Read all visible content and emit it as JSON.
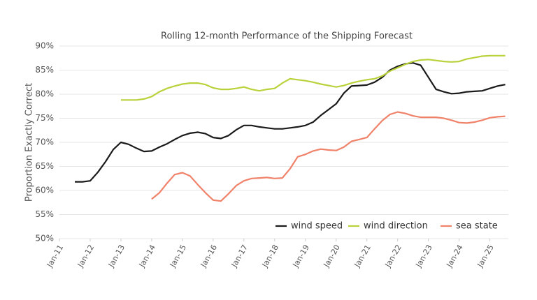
{
  "chart_data": {
    "type": "line",
    "title": "Rolling 12-month Performance of the Shipping Forecast",
    "y_label": "Proportion Exactly Correct",
    "x": [
      2011.5,
      2011.75,
      2012,
      2012.25,
      2012.5,
      2012.75,
      2013,
      2013.25,
      2013.5,
      2013.75,
      2014,
      2014.25,
      2014.5,
      2014.75,
      2015,
      2015.25,
      2015.5,
      2015.75,
      2016,
      2016.25,
      2016.5,
      2016.75,
      2017,
      2017.25,
      2017.5,
      2017.75,
      2018,
      2018.25,
      2018.5,
      2018.75,
      2019,
      2019.25,
      2019.5,
      2019.75,
      2020,
      2020.25,
      2020.5,
      2020.75,
      2021,
      2021.25,
      2021.5,
      2021.75,
      2022,
      2022.25,
      2022.5,
      2022.75,
      2023,
      2023.25,
      2023.5,
      2023.75,
      2024,
      2024.25,
      2024.5,
      2024.75,
      2025,
      2025.25,
      2025.5
    ],
    "series": [
      {
        "name": "wind speed",
        "color": "#1a1a1a",
        "values": [
          61.8,
          61.8,
          62.0,
          63.8,
          66.0,
          68.5,
          70.0,
          69.6,
          68.8,
          68.1,
          68.2,
          69.0,
          69.7,
          70.6,
          71.4,
          71.9,
          72.1,
          71.8,
          71.0,
          70.8,
          71.4,
          72.6,
          73.5,
          73.5,
          73.2,
          73.0,
          72.8,
          72.8,
          73.0,
          73.2,
          73.5,
          74.2,
          75.6,
          76.8,
          78.0,
          80.2,
          81.7,
          81.8,
          81.9,
          82.5,
          83.5,
          85.0,
          85.8,
          86.3,
          86.5,
          86.0,
          83.5,
          81.0,
          80.5,
          80.1,
          80.2,
          80.5,
          80.6,
          80.7,
          81.2,
          81.7,
          82.0
        ]
      },
      {
        "name": "wind direction",
        "color": "#b9d23c",
        "values": [
          null,
          null,
          null,
          null,
          null,
          null,
          78.8,
          78.8,
          78.8,
          79.0,
          79.5,
          80.5,
          81.2,
          81.7,
          82.1,
          82.3,
          82.3,
          82.0,
          81.3,
          81.0,
          81.0,
          81.2,
          81.5,
          81.0,
          80.7,
          81.0,
          81.2,
          82.3,
          83.2,
          83.0,
          82.8,
          82.5,
          82.1,
          81.8,
          81.5,
          81.8,
          82.3,
          82.7,
          83.0,
          83.2,
          83.8,
          84.8,
          85.5,
          86.2,
          86.8,
          87.1,
          87.2,
          87.0,
          86.8,
          86.7,
          86.8,
          87.3,
          87.6,
          87.9,
          88.0,
          88.0,
          88.0
        ]
      },
      {
        "name": "sea state",
        "color": "#f0826a",
        "values": [
          null,
          null,
          null,
          null,
          null,
          null,
          null,
          null,
          null,
          null,
          58.2,
          59.5,
          61.5,
          63.3,
          63.7,
          63.0,
          61.2,
          59.5,
          58.0,
          57.8,
          59.3,
          61.0,
          62.0,
          62.5,
          62.6,
          62.7,
          62.5,
          62.6,
          64.5,
          67.0,
          67.5,
          68.2,
          68.6,
          68.4,
          68.3,
          69.0,
          70.2,
          70.6,
          71.0,
          72.8,
          74.5,
          75.8,
          76.3,
          76.0,
          75.5,
          75.2,
          75.2,
          75.2,
          75.0,
          74.6,
          74.1,
          74.0,
          74.2,
          74.6,
          75.1,
          75.3,
          75.4
        ]
      }
    ],
    "xlim": [
      2011,
      2025.6
    ],
    "xticks": [
      {
        "value": 2011,
        "label": "Jan-11"
      },
      {
        "value": 2012,
        "label": "Jan-12"
      },
      {
        "value": 2013,
        "label": "Jan-13"
      },
      {
        "value": 2014,
        "label": "Jan-14"
      },
      {
        "value": 2015,
        "label": "Jan-15"
      },
      {
        "value": 2016,
        "label": "Jan-16"
      },
      {
        "value": 2017,
        "label": "Jan-17"
      },
      {
        "value": 2018,
        "label": "Jan-18"
      },
      {
        "value": 2019,
        "label": "Jan-19"
      },
      {
        "value": 2020,
        "label": "Jan-20"
      },
      {
        "value": 2021,
        "label": "Jan-21"
      },
      {
        "value": 2022,
        "label": "Jan-22"
      },
      {
        "value": 2023,
        "label": "Jan-23"
      },
      {
        "value": 2024,
        "label": "Jan-24"
      },
      {
        "value": 2025,
        "label": "Jan-25"
      }
    ],
    "ylim": [
      50,
      90
    ],
    "yticks": [
      {
        "value": 50,
        "label": "50%"
      },
      {
        "value": 55,
        "label": "55%"
      },
      {
        "value": 60,
        "label": "60%"
      },
      {
        "value": 65,
        "label": "65%"
      },
      {
        "value": 70,
        "label": "70%"
      },
      {
        "value": 75,
        "label": "75%"
      },
      {
        "value": 80,
        "label": "80%"
      },
      {
        "value": 85,
        "label": "85%"
      },
      {
        "value": 90,
        "label": "90%"
      }
    ],
    "grid": true,
    "legend": "bottom-right"
  }
}
